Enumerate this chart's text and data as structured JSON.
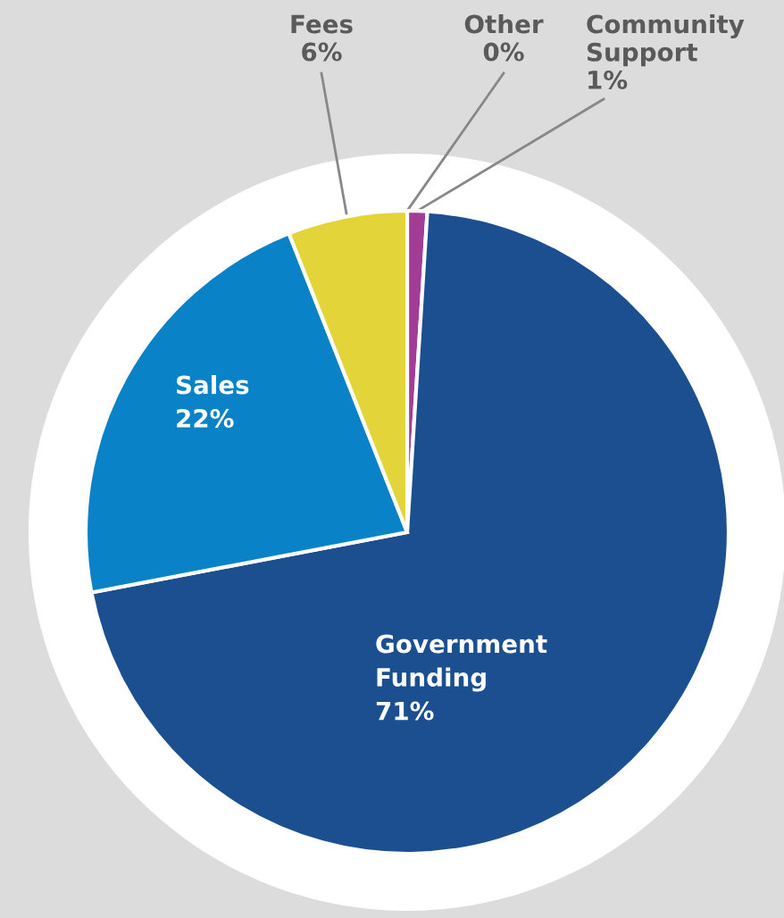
{
  "chart_data": {
    "type": "pie",
    "categories": [
      "Other",
      "Community Support",
      "Government Funding",
      "Sales",
      "Fees"
    ],
    "values": [
      0,
      1,
      71,
      22,
      6
    ],
    "value_labels": [
      "0%",
      "1%",
      "71%",
      "22%",
      "6%"
    ],
    "colors": [
      "#0a9a6e",
      "#a23d96",
      "#1c4f8f",
      "#0a82c8",
      "#e3d43a"
    ]
  }
}
